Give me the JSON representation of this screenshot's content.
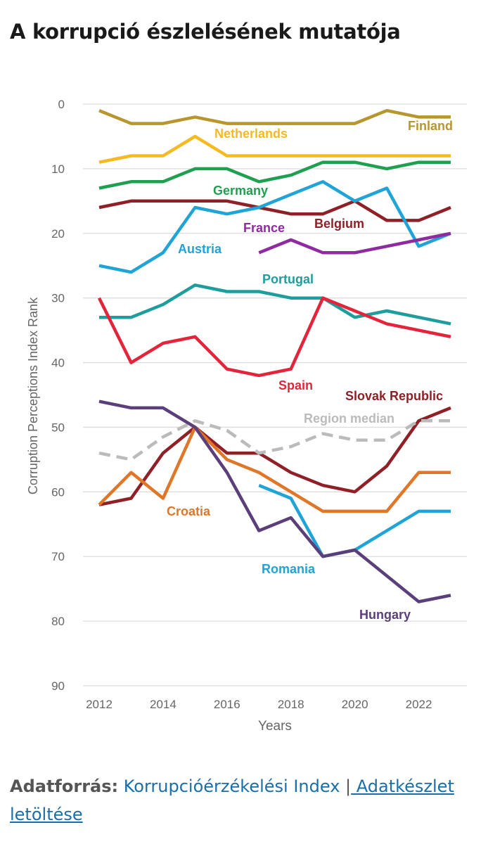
{
  "page": {
    "title": "A korrupció észlelésének mutatója",
    "source_label": "Adatforrás:",
    "source_link": "Korrupcióérzékelési Index",
    "separator": "|",
    "dataset_link": " Adatkészlet letöltése"
  },
  "chart_data": {
    "type": "line",
    "title": "",
    "xlabel": "Years",
    "ylabel": "Corruption Perceptions Index Rank",
    "xlim": [
      2012,
      2023
    ],
    "ylim": [
      90,
      0
    ],
    "y_inverted": true,
    "x_ticks": [
      2012,
      2014,
      2016,
      2018,
      2020,
      2022
    ],
    "y_ticks": [
      0,
      10,
      20,
      30,
      40,
      50,
      60,
      70,
      80,
      90
    ],
    "grid": "horizontal",
    "legend": "inline labels",
    "x": [
      2012,
      2013,
      2014,
      2015,
      2016,
      2017,
      2018,
      2019,
      2020,
      2021,
      2022,
      2023
    ],
    "series": [
      {
        "name": "Finland",
        "color": "#b8962e",
        "values": [
          1,
          3,
          3,
          2,
          3,
          3,
          3,
          3,
          3,
          1,
          2,
          2
        ]
      },
      {
        "name": "Netherlands",
        "color": "#f5b921",
        "values": [
          9,
          8,
          8,
          5,
          8,
          8,
          8,
          8,
          8,
          8,
          8,
          8
        ]
      },
      {
        "name": "Germany",
        "color": "#1fa050",
        "values": [
          13,
          12,
          12,
          10,
          10,
          12,
          11,
          9,
          9,
          10,
          9,
          9
        ]
      },
      {
        "name": "Belgium",
        "color": "#8f2027",
        "values": [
          16,
          15,
          15,
          15,
          15,
          16,
          17,
          17,
          15,
          18,
          18,
          16
        ]
      },
      {
        "name": "Austria",
        "color": "#20a3d6",
        "values": [
          25,
          26,
          23,
          16,
          17,
          16,
          14,
          12,
          15,
          13,
          22,
          20
        ]
      },
      {
        "name": "France",
        "color": "#8e2ba0",
        "values": [
          null,
          null,
          null,
          null,
          null,
          23,
          21,
          23,
          23,
          22,
          21,
          20
        ]
      },
      {
        "name": "Portugal",
        "color": "#1d9e9c",
        "values": [
          33,
          33,
          31,
          28,
          29,
          29,
          30,
          30,
          33,
          32,
          33,
          34
        ]
      },
      {
        "name": "Spain",
        "color": "#e3243a",
        "values": [
          30,
          40,
          37,
          36,
          41,
          42,
          41,
          30,
          32,
          34,
          35,
          36
        ]
      },
      {
        "name": "Slovak Republic",
        "color": "#8f2027",
        "values": [
          62,
          61,
          54,
          50,
          54,
          54,
          57,
          59,
          60,
          56,
          49,
          47
        ]
      },
      {
        "name": "Region median",
        "color": "#bbbbbb",
        "dashed": true,
        "values": [
          54,
          55,
          51.5,
          49,
          50.5,
          54,
          53,
          51,
          52,
          52,
          49,
          49
        ]
      },
      {
        "name": "Croatia",
        "color": "#e07728",
        "values": [
          62,
          57,
          61,
          50,
          55,
          57,
          60,
          63,
          63,
          63,
          57,
          57
        ]
      },
      {
        "name": "Romania",
        "color": "#20a3d6",
        "values": [
          null,
          null,
          null,
          null,
          null,
          59,
          61,
          70,
          69,
          66,
          63,
          63
        ]
      },
      {
        "name": "Hungary",
        "color": "#5b3f7a",
        "values": [
          46,
          47,
          47,
          50,
          57,
          66,
          64,
          70,
          69,
          73,
          77,
          76
        ]
      }
    ],
    "labels": [
      {
        "name": "Finland",
        "text": "Finland",
        "color": "#b8962e"
      },
      {
        "name": "Netherlands",
        "text": "Netherlands",
        "color": "#f5b921"
      },
      {
        "name": "Germany",
        "text": "Germany",
        "color": "#1fa050"
      },
      {
        "name": "France",
        "text": "France",
        "color": "#8e2ba0"
      },
      {
        "name": "Belgium",
        "text": "Belgium",
        "color": "#8f2027"
      },
      {
        "name": "Austria",
        "text": "Austria",
        "color": "#20a3d6"
      },
      {
        "name": "Portugal",
        "text": "Portugal",
        "color": "#1d9e9c"
      },
      {
        "name": "Spain",
        "text": "Spain",
        "color": "#e3243a"
      },
      {
        "name": "Slovak Republic",
        "text": "Slovak Republic",
        "color": "#8f2027"
      },
      {
        "name": "Region median",
        "text": "Region median",
        "color": "#bbbbbb"
      },
      {
        "name": "Croatia",
        "text": "Croatia",
        "color": "#e07728"
      },
      {
        "name": "Romania",
        "text": "Romania",
        "color": "#20a3d6"
      },
      {
        "name": "Hungary",
        "text": "Hungary",
        "color": "#5b3f7a"
      }
    ]
  }
}
